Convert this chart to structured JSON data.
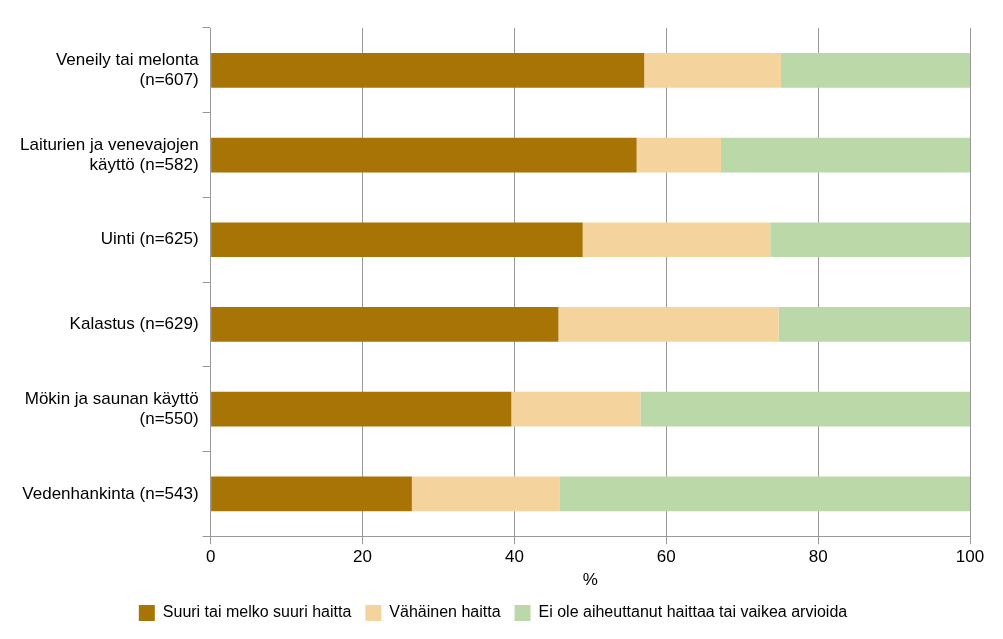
{
  "chart_data": {
    "type": "bar",
    "orientation": "horizontal",
    "stacked": true,
    "xlabel": "%",
    "categories": [
      "Veneily tai melonta (n=607)",
      "Laiturien ja venevajojen käyttö (n=582)",
      "Uinti (n=625)",
      "Kalastus (n=629)",
      "Mökin ja saunan käyttö (n=550)",
      "Vedenhankinta (n=543)"
    ],
    "series": [
      {
        "name": "Suuri tai melko suuri haitta",
        "color": "#a77405",
        "values": [
          57.1,
          56.1,
          49.0,
          45.8,
          39.6,
          26.5
        ]
      },
      {
        "name": "Vähäinen haitta",
        "color": "#f4d49c",
        "values": [
          18.0,
          11.1,
          24.7,
          29.0,
          17.0,
          19.5
        ]
      },
      {
        "name": "Ei ole aiheuttanut haittaa tai vaikea arvioida",
        "color": "#bad8a8",
        "values": [
          24.9,
          32.8,
          26.3,
          25.2,
          43.4,
          54.0
        ]
      }
    ],
    "xlim": [
      0,
      100
    ],
    "xticks": [
      0,
      20,
      40,
      60,
      80,
      100
    ],
    "grid": "x",
    "legend": "bottom"
  }
}
